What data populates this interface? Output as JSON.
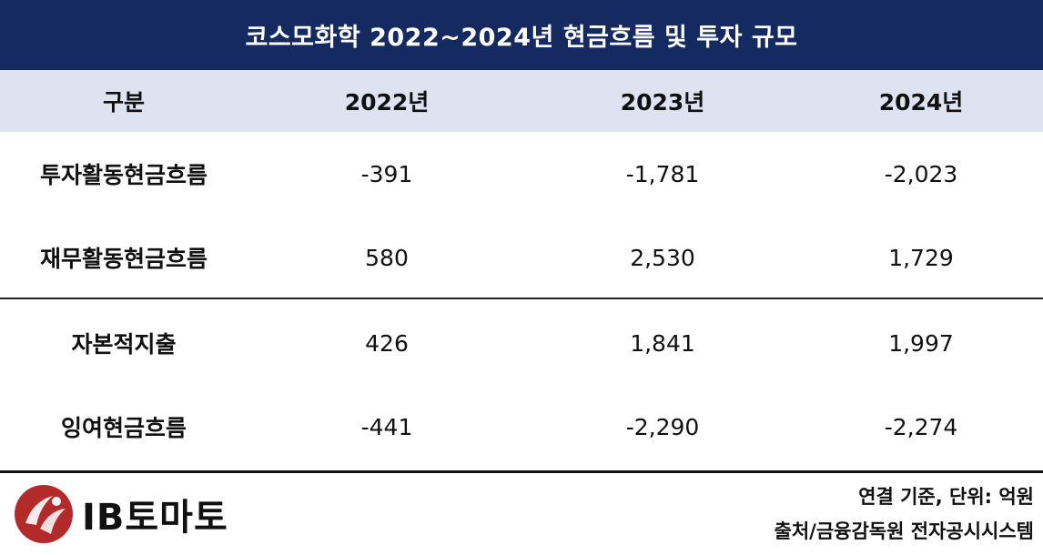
{
  "title": "코스모화학 2022~2024년 현금흐름 및 투자 규모",
  "columns": [
    "구분",
    "2022년",
    "2023년",
    "2024년"
  ],
  "rows": [
    {
      "label": "투자활동현금흐름",
      "values": [
        "-391",
        "-1,781",
        "-2,023"
      ]
    },
    {
      "label": "재무활동현금흐름",
      "values": [
        "580",
        "2,530",
        "1,729"
      ]
    },
    {
      "label": "자본적지출",
      "values": [
        "426",
        "1,841",
        "1,997"
      ]
    },
    {
      "label": "잉여현금흐름",
      "values": [
        "-441",
        "-2,290",
        "-2,274"
      ]
    }
  ],
  "footer": {
    "logo_text": "IB토마토",
    "note_basis": "연결 기준, 단위: 억원",
    "note_source": "출처/금융감독원 전자공시시스템"
  },
  "colors": {
    "title_bg": "#152a61",
    "header_bg": "#dde3f1",
    "logo_red": "#b32a2a"
  }
}
